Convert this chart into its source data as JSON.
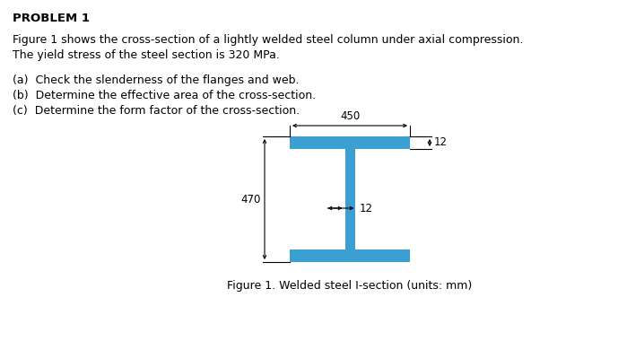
{
  "title": "PROBLEM 1",
  "para1_line1": "Figure 1 shows the cross-section of a lightly welded steel column under axial compression.",
  "para1_line2": "The yield stress of the steel section is 320 MPa.",
  "item_a": "(a)  Check the slenderness of the flanges and web.",
  "item_b": "(b)  Determine the effective area of the cross-section.",
  "item_c": "(c)  Determine the form factor of the cross-section.",
  "fig_caption": "Figure 1. Welded steel I-section (units: mm)",
  "steel_color": "#3b9fd1",
  "bg_color": "#ffffff",
  "text_color": "#000000",
  "dim_text_color": "#000000"
}
